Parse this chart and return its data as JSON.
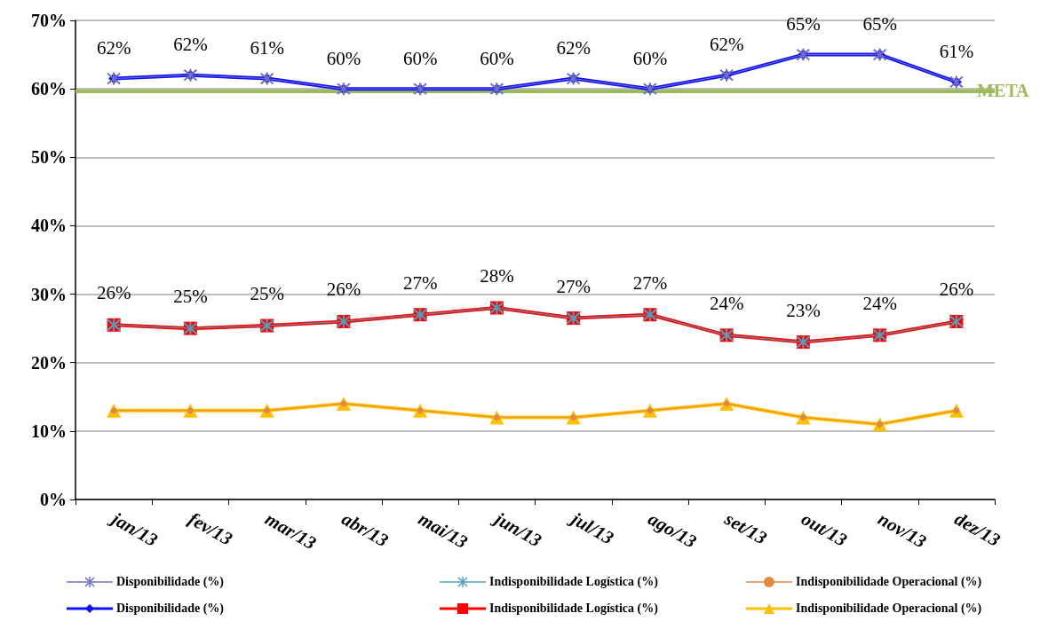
{
  "chart_data": {
    "type": "line",
    "categories": [
      "jan/13",
      "fev/13",
      "mar/13",
      "abr/13",
      "mai/13",
      "jun/13",
      "jul/13",
      "ago/13",
      "set/13",
      "out/13",
      "nov/13",
      "dez/13"
    ],
    "series": [
      {
        "name": "Disponibilidade (%)",
        "color": "#7070c0",
        "marker": "cross",
        "values": [
          61.5,
          62,
          61.5,
          60,
          60,
          60,
          61.5,
          60,
          62,
          65,
          65,
          61
        ]
      },
      {
        "name": "Indisponibilidade Logística (%)",
        "color": "#50a0c0",
        "marker": "cross",
        "values": [
          25.5,
          25,
          25.4,
          26,
          27,
          28,
          26.5,
          27,
          24,
          23,
          24,
          26
        ]
      },
      {
        "name": "Indisponibilidade Operacional (%)",
        "color": "#e08a40",
        "marker": "circle",
        "values": [
          13,
          13,
          13,
          14,
          13,
          12,
          12,
          13,
          14,
          12,
          11,
          13
        ]
      },
      {
        "name": "Disponibilidade (%)",
        "color": "#1010ff",
        "marker": "diamond",
        "values": [
          61.5,
          62,
          61.5,
          60,
          60,
          60,
          61.5,
          60,
          62,
          65,
          65,
          61
        ],
        "value_labels": [
          "62%",
          "62%",
          "61%",
          "60%",
          "60%",
          "60%",
          "62%",
          "60%",
          "62%",
          "65%",
          "65%",
          "61%"
        ]
      },
      {
        "name": "Indisponibilidade Logística (%)",
        "color": "#ff0000",
        "marker": "square",
        "values": [
          25.5,
          25,
          25.4,
          26,
          27,
          28,
          26.5,
          27,
          24,
          23,
          24,
          26
        ],
        "value_labels": [
          "26%",
          "25%",
          "25%",
          "26%",
          "27%",
          "28%",
          "27%",
          "27%",
          "24%",
          "23%",
          "24%",
          "26%"
        ]
      },
      {
        "name": "Indisponibilidade Operacional (%)",
        "color": "#ffc000",
        "marker": "triangle",
        "values": [
          13,
          13,
          13,
          14,
          13,
          12,
          12,
          13,
          14,
          12,
          11,
          13
        ]
      }
    ],
    "ylim": [
      0,
      70
    ],
    "yticks": [
      {
        "value": 0,
        "label": "0%"
      },
      {
        "value": 10,
        "label": "10%"
      },
      {
        "value": 20,
        "label": "20%"
      },
      {
        "value": 30,
        "label": "30%"
      },
      {
        "value": 40,
        "label": "40%"
      },
      {
        "value": 50,
        "label": "50%"
      },
      {
        "value": 60,
        "label": "60%"
      },
      {
        "value": 70,
        "label": "70%"
      }
    ],
    "ref_lines": [
      {
        "axis": "y",
        "value": 59.7,
        "label": "META",
        "color": "#9bbb59"
      }
    ],
    "grid": "y",
    "legend": "bottom"
  }
}
